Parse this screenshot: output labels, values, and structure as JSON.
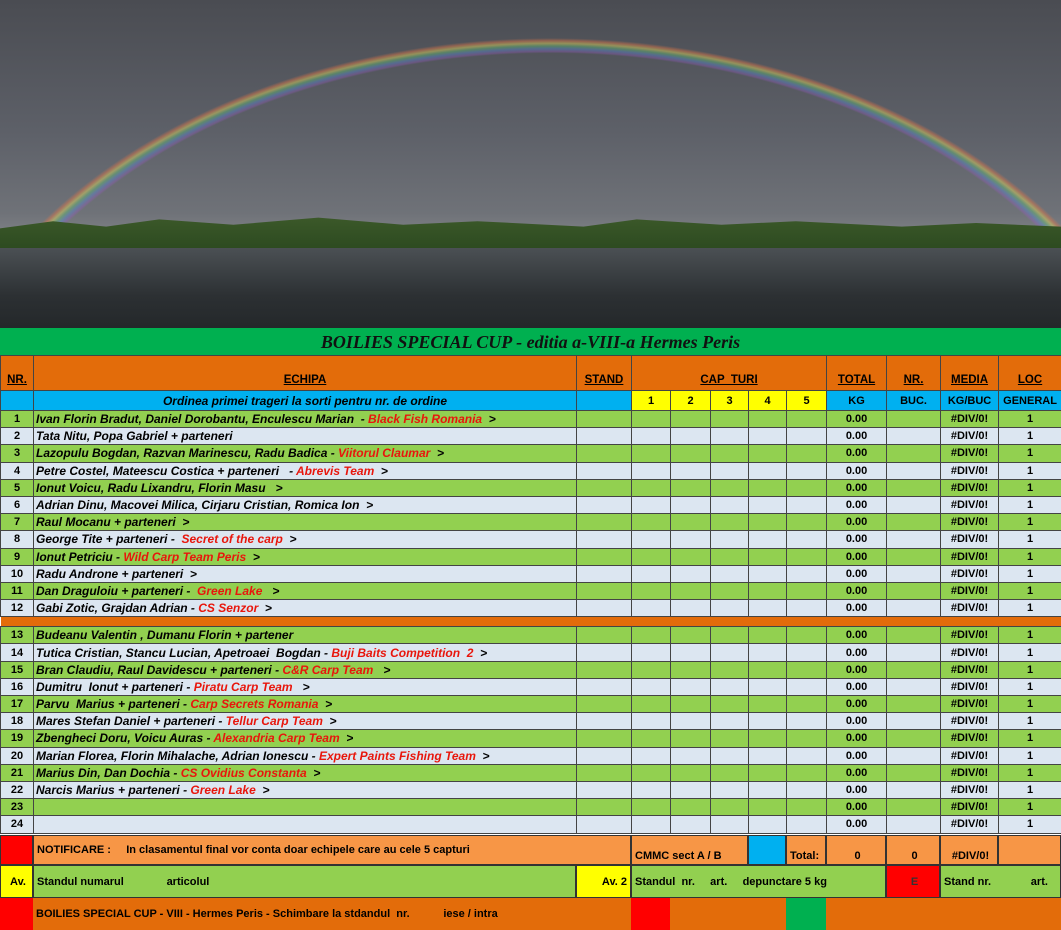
{
  "title": "BOILIES SPECIAL CUP - editia a-VIII-a Hermes Peris",
  "headers": {
    "nr": "NR.",
    "echipa": "ECHIPA",
    "stand": "STAND",
    "capturi": "CAP  TURI",
    "total": "TOTAL",
    "nr2": "NR.",
    "media": "MEDIA",
    "loc": "LOC"
  },
  "subheaders": {
    "echipa": "Ordinea primei trageri la sorti pentru nr. de ordine",
    "caps": [
      "1",
      "2",
      "3",
      "4",
      "5"
    ],
    "total": "KG",
    "nr2": "BUC.",
    "media": "KG/BUC",
    "loc": "GENERAL"
  },
  "rows": [
    {
      "nr": "1",
      "names": "Ivan Florin Bradut, Daniel Dorobantu, Enculescu Marian  - ",
      "team": "Black Fish Romania",
      "arrow": "  >",
      "total": "0.00",
      "media": "#DIV/0!",
      "loc": "1"
    },
    {
      "nr": "2",
      "names": "Tata Nitu, Popa Gabriel + parteneri",
      "team": "",
      "arrow": "",
      "total": "0.00",
      "media": "#DIV/0!",
      "loc": "1"
    },
    {
      "nr": "3",
      "names": "Lazopulu Bogdan, Razvan Marinescu, Radu Badica - ",
      "team": "Viitorul Claumar",
      "arrow": "  >",
      "total": "0.00",
      "media": "#DIV/0!",
      "loc": "1"
    },
    {
      "nr": "4",
      "names": "Petre Costel, Mateescu Costica + parteneri   - ",
      "team": "Abrevis Team",
      "arrow": "  >",
      "total": "0.00",
      "media": "#DIV/0!",
      "loc": "1"
    },
    {
      "nr": "5",
      "names": "Ionut Voicu, Radu Lixandru, Florin Masu",
      "team": "",
      "arrow": "   >",
      "total": "0.00",
      "media": "#DIV/0!",
      "loc": "1"
    },
    {
      "nr": "6",
      "names": "Adrian Dinu, Macovei Milica, Cirjaru Cristian, Romica Ion",
      "team": "",
      "arrow": "  >",
      "total": "0.00",
      "media": "#DIV/0!",
      "loc": "1"
    },
    {
      "nr": "7",
      "names": "Raul Mocanu + parteneri",
      "team": "",
      "arrow": "  >",
      "total": "0.00",
      "media": "#DIV/0!",
      "loc": "1"
    },
    {
      "nr": "8",
      "names": "George Tite + parteneri -  ",
      "team": "Secret of the carp",
      "arrow": "  >",
      "total": "0.00",
      "media": "#DIV/0!",
      "loc": "1"
    },
    {
      "nr": "9",
      "names": "Ionut Petriciu - ",
      "team": "Wild Carp Team Peris",
      "arrow": "  >",
      "total": "0.00",
      "media": "#DIV/0!",
      "loc": "1"
    },
    {
      "nr": "10",
      "names": "Radu Androne + parteneri",
      "team": "",
      "arrow": "  >",
      "total": "0.00",
      "media": "#DIV/0!",
      "loc": "1"
    },
    {
      "nr": "11",
      "names": "Dan Draguloiu + parteneri -  ",
      "team": "Green Lake",
      "arrow": "   >",
      "total": "0.00",
      "media": "#DIV/0!",
      "loc": "1"
    },
    {
      "nr": "12",
      "names": "Gabi Zotic, Grajdan Adrian - ",
      "team": "CS Senzor",
      "arrow": "  >",
      "total": "0.00",
      "media": "#DIV/0!",
      "loc": "1"
    },
    {
      "nr": "13",
      "names": "Budeanu Valentin , Dumanu Florin + partener",
      "team": "",
      "arrow": "",
      "total": "0.00",
      "media": "#DIV/0!",
      "loc": "1"
    },
    {
      "nr": "14",
      "names": "Tutica Cristian, Stancu Lucian, Apetroaei  Bogdan - ",
      "team": "Buji Baits Competition  2",
      "arrow": "  >",
      "total": "0.00",
      "media": "#DIV/0!",
      "loc": "1"
    },
    {
      "nr": "15",
      "names": "Bran Claudiu, Raul Davidescu + parteneri - ",
      "team": "C&R Carp Team",
      "arrow": "   >",
      "total": "0.00",
      "media": "#DIV/0!",
      "loc": "1"
    },
    {
      "nr": "16",
      "names": "Dumitru  Ionut + parteneri - ",
      "team": "Piratu Carp Team",
      "arrow": "   >",
      "total": "0.00",
      "media": "#DIV/0!",
      "loc": "1"
    },
    {
      "nr": "17",
      "names": "Parvu  Marius + parteneri - ",
      "team": "Carp Secrets Romania",
      "arrow": "  >",
      "total": "0.00",
      "media": "#DIV/0!",
      "loc": "1"
    },
    {
      "nr": "18",
      "names": "Mares Stefan Daniel + parteneri - ",
      "team": "Tellur Carp Team",
      "arrow": "  >",
      "total": "0.00",
      "media": "#DIV/0!",
      "loc": "1"
    },
    {
      "nr": "19",
      "names": "Zbengheci Doru, Voicu Auras - ",
      "team": "Alexandria Carp Team",
      "arrow": "  >",
      "total": "0.00",
      "media": "#DIV/0!",
      "loc": "1"
    },
    {
      "nr": "20",
      "names": "Marian Florea, Florin Mihalache, Adrian Ionescu - ",
      "team": "Expert Paints Fishing Team",
      "arrow": "  >",
      "total": "0.00",
      "media": "#DIV/0!",
      "loc": "1"
    },
    {
      "nr": "21",
      "names": "Marius Din, Dan Dochia - ",
      "team": "CS Ovidius Constanta",
      "arrow": "  >",
      "total": "0.00",
      "media": "#DIV/0!",
      "loc": "1"
    },
    {
      "nr": "22",
      "names": "Narcis Marius + parteneri - ",
      "team": "Green Lake",
      "arrow": "  >",
      "total": "0.00",
      "media": "#DIV/0!",
      "loc": "1"
    },
    {
      "nr": "23",
      "names": "",
      "team": "",
      "arrow": "",
      "total": "0.00",
      "media": "#DIV/0!",
      "loc": "1"
    },
    {
      "nr": "24",
      "names": "",
      "team": "",
      "arrow": "",
      "total": "0.00",
      "media": "#DIV/0!",
      "loc": "1"
    }
  ],
  "footer": {
    "notice": "NOTIFICARE :     In clasamentul final vor conta doar echipele care au cele 5 capturi",
    "cmmc": "CMMC sect  A / B",
    "total_label": "Total:",
    "total_kg": "0",
    "total_buc": "0",
    "total_media": "#DIV/0!",
    "av": "Av.",
    "standul": "Standul numarul              articolul",
    "av2": "Av. 2",
    "standul2": "Standul  nr.     art.     depunctare 5 kg",
    "e": "E",
    "stand3": "Stand nr.             art.",
    "bottom": "BOILIES SPECIAL CUP - VIII - Hermes Peris - Schimbare la stdandul  nr.           iese / intra"
  },
  "colors": {
    "green": "#00b050",
    "orange": "#e36c0a",
    "light_orange": "#f79646",
    "blue": "#00b0f0",
    "yellow": "#ffff00",
    "lime": "#92d050",
    "red": "#ff0000",
    "team_red": "#e8160c"
  }
}
